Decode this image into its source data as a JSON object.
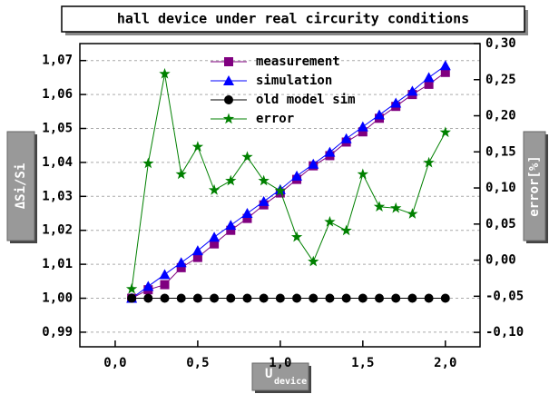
{
  "chart_data": {
    "type": "line",
    "title": "hall device under real circurity conditions",
    "ylabel": "ΔSi/Si",
    "y2label": "error[%]",
    "xlabel": "U",
    "xlabel_sub": "device",
    "x": [
      0.1,
      0.2,
      0.3,
      0.4,
      0.5,
      0.6,
      0.7,
      0.8,
      0.9,
      1.0,
      1.1,
      1.2,
      1.3,
      1.4,
      1.5,
      1.6,
      1.7,
      1.8,
      1.9,
      2.0
    ],
    "series": [
      {
        "name": "measurement",
        "color": "#800080",
        "marker": "square",
        "values": [
          1.0,
          1.0025,
          1.004,
          1.009,
          1.012,
          1.016,
          1.02,
          1.0235,
          1.0275,
          1.031,
          1.035,
          1.039,
          1.042,
          1.046,
          1.049,
          1.053,
          1.0565,
          1.06,
          1.063,
          1.0665
        ]
      },
      {
        "name": "simulation",
        "color": "#0000ff",
        "marker": "triangle",
        "values": [
          1.0,
          1.0035,
          1.007,
          1.0105,
          1.014,
          1.018,
          1.0215,
          1.025,
          1.0285,
          1.032,
          1.036,
          1.0395,
          1.043,
          1.047,
          1.0505,
          1.054,
          1.0575,
          1.061,
          1.065,
          1.0685
        ]
      },
      {
        "name": "old model sim",
        "color": "#000000",
        "marker": "circle",
        "values": [
          1.0,
          1.0,
          1.0,
          1.0,
          1.0,
          1.0,
          1.0,
          1.0,
          1.0,
          1.0,
          1.0,
          1.0,
          1.0,
          1.0,
          1.0,
          1.0,
          1.0,
          1.0,
          1.0,
          1.0
        ]
      },
      {
        "name": "error",
        "color": "#008000",
        "marker": "star",
        "axis": "y2",
        "values": [
          -0.04,
          0.134,
          0.258,
          0.119,
          0.157,
          0.097,
          0.11,
          0.143,
          0.11,
          0.096,
          0.032,
          -0.002,
          0.053,
          0.041,
          0.119,
          0.074,
          0.072,
          0.064,
          0.135,
          0.177
        ]
      }
    ],
    "xlim": [
      -0.214,
      2.21
    ],
    "xticks": [
      {
        "value": 0,
        "label": "0,0"
      },
      {
        "value": 0.5,
        "label": "0,5"
      },
      {
        "value": 1.0,
        "label": "1,0"
      },
      {
        "value": 1.5,
        "label": "1,5"
      },
      {
        "value": 2.0,
        "label": "2,0"
      }
    ],
    "ylim": [
      0.9857,
      1.075
    ],
    "yticks": [
      {
        "value": 0.99,
        "label": "0,99"
      },
      {
        "value": 1.0,
        "label": "1,00"
      },
      {
        "value": 1.01,
        "label": "1,01"
      },
      {
        "value": 1.02,
        "label": "1,02"
      },
      {
        "value": 1.03,
        "label": "1,03"
      },
      {
        "value": 1.04,
        "label": "1,04"
      },
      {
        "value": 1.05,
        "label": "1,05"
      },
      {
        "value": 1.06,
        "label": "1,06"
      },
      {
        "value": 1.07,
        "label": "1,07"
      }
    ],
    "y2lim": [
      -0.12,
      0.3
    ],
    "y2ticks": [
      {
        "value": -0.1,
        "label": "-0,10"
      },
      {
        "value": -0.05,
        "label": "-0,05"
      },
      {
        "value": 0.0,
        "label": "0,00"
      },
      {
        "value": 0.05,
        "label": "0,05"
      },
      {
        "value": 0.1,
        "label": "0,10"
      },
      {
        "value": 0.15,
        "label": "0,15"
      },
      {
        "value": 0.2,
        "label": "0,20"
      },
      {
        "value": 0.25,
        "label": "0,25"
      },
      {
        "value": 0.3,
        "label": "0,30"
      }
    ],
    "grid": true,
    "legend": "top"
  }
}
